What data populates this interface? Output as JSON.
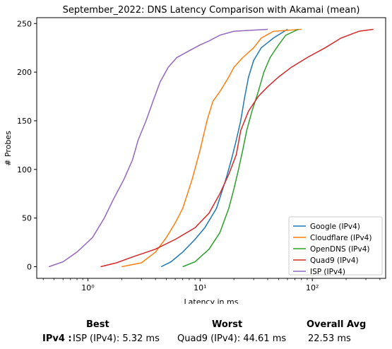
{
  "chart_data": {
    "type": "line",
    "title": "September_2022: DNS Latency Comparison with Akamai (mean)",
    "xlabel": "Latency in ms",
    "ylabel": "# Probes",
    "xscale": "log",
    "xlim": [
      0.35,
      450
    ],
    "ylim": [
      -12,
      256
    ],
    "x_ticks": [
      1,
      10,
      100
    ],
    "x_tick_labels": [
      "10⁰",
      "10¹",
      "10²"
    ],
    "y_ticks": [
      0,
      50,
      100,
      150,
      200,
      250
    ],
    "grid": false,
    "legend_position": "bottom-right",
    "series": [
      {
        "name": "Google (IPv4)",
        "color": "#1f77b4",
        "points": [
          [
            4.5,
            0
          ],
          [
            5.5,
            5
          ],
          [
            7,
            15
          ],
          [
            9,
            28
          ],
          [
            11,
            40
          ],
          [
            14,
            60
          ],
          [
            17,
            90
          ],
          [
            19,
            110
          ],
          [
            21,
            130
          ],
          [
            23,
            150
          ],
          [
            25,
            175
          ],
          [
            27,
            195
          ],
          [
            30,
            212
          ],
          [
            35,
            225
          ],
          [
            45,
            235
          ],
          [
            60,
            244
          ]
        ]
      },
      {
        "name": "Cloudflare (IPv4)",
        "color": "#ff7f0e",
        "points": [
          [
            2,
            0
          ],
          [
            3,
            4
          ],
          [
            4,
            15
          ],
          [
            5,
            30
          ],
          [
            6,
            45
          ],
          [
            7,
            60
          ],
          [
            8.5,
            90
          ],
          [
            10,
            120
          ],
          [
            11.5,
            150
          ],
          [
            13,
            170
          ],
          [
            15,
            180
          ],
          [
            18,
            195
          ],
          [
            20,
            205
          ],
          [
            24,
            215
          ],
          [
            30,
            225
          ],
          [
            35,
            235
          ],
          [
            45,
            242
          ],
          [
            80,
            244
          ]
        ]
      },
      {
        "name": "OpenDNS (IPv4)",
        "color": "#2ca02c",
        "points": [
          [
            7,
            0
          ],
          [
            9,
            5
          ],
          [
            12,
            18
          ],
          [
            15,
            35
          ],
          [
            18,
            60
          ],
          [
            20,
            80
          ],
          [
            22,
            100
          ],
          [
            24,
            120
          ],
          [
            26,
            140
          ],
          [
            29,
            160
          ],
          [
            33,
            180
          ],
          [
            37,
            200
          ],
          [
            42,
            215
          ],
          [
            50,
            228
          ],
          [
            58,
            238
          ],
          [
            75,
            244
          ]
        ]
      },
      {
        "name": "Quad9 (IPv4)",
        "color": "#d62728",
        "points": [
          [
            1.3,
            0
          ],
          [
            1.8,
            4
          ],
          [
            2.5,
            10
          ],
          [
            4,
            18
          ],
          [
            6,
            28
          ],
          [
            9,
            40
          ],
          [
            12,
            55
          ],
          [
            15,
            75
          ],
          [
            18,
            95
          ],
          [
            21,
            115
          ],
          [
            23,
            140
          ],
          [
            27,
            160
          ],
          [
            33,
            175
          ],
          [
            40,
            185
          ],
          [
            50,
            195
          ],
          [
            65,
            205
          ],
          [
            90,
            215
          ],
          [
            130,
            225
          ],
          [
            180,
            235
          ],
          [
            260,
            242
          ],
          [
            350,
            244
          ]
        ]
      },
      {
        "name": "ISP (IPv4)",
        "color": "#9467bd",
        "points": [
          [
            0.45,
            0
          ],
          [
            0.6,
            5
          ],
          [
            0.8,
            15
          ],
          [
            1.1,
            30
          ],
          [
            1.4,
            50
          ],
          [
            1.7,
            70
          ],
          [
            2.1,
            90
          ],
          [
            2.5,
            110
          ],
          [
            2.8,
            130
          ],
          [
            3.3,
            150
          ],
          [
            3.8,
            170
          ],
          [
            4.4,
            190
          ],
          [
            5.2,
            205
          ],
          [
            6.2,
            215
          ],
          [
            8,
            222
          ],
          [
            10,
            228
          ],
          [
            12,
            232
          ],
          [
            15,
            238
          ],
          [
            20,
            242
          ],
          [
            40,
            244
          ]
        ]
      }
    ]
  },
  "summary": {
    "headers": {
      "best": "Best",
      "worst": "Worst",
      "overall_avg": "Overall Avg"
    },
    "row_label": "IPv4 :",
    "best": "ISP (IPv4): 5.32 ms",
    "worst": "Quad9 (IPv4): 44.61 ms",
    "overall_avg": "22.53 ms"
  }
}
